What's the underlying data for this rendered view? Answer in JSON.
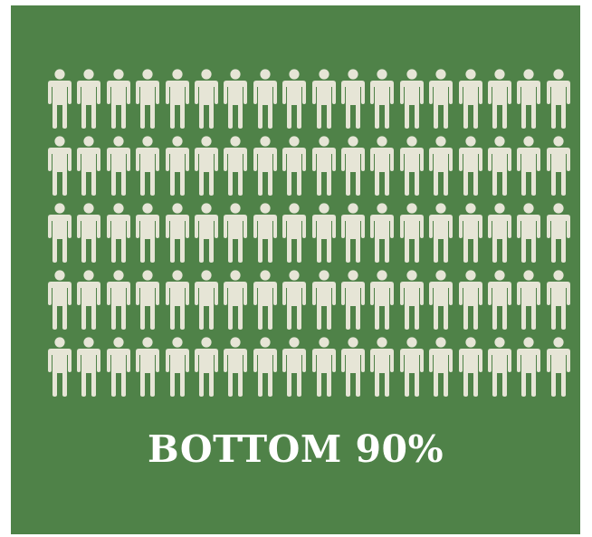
{
  "infographic": {
    "label": "BOTTOM 90%",
    "figure_count": 90,
    "rows": 5,
    "columns": 18,
    "figure_icon": "person-icon",
    "colors": {
      "background": "#4f8248",
      "figure": "#e6e5d6",
      "label": "#ffffff"
    }
  }
}
